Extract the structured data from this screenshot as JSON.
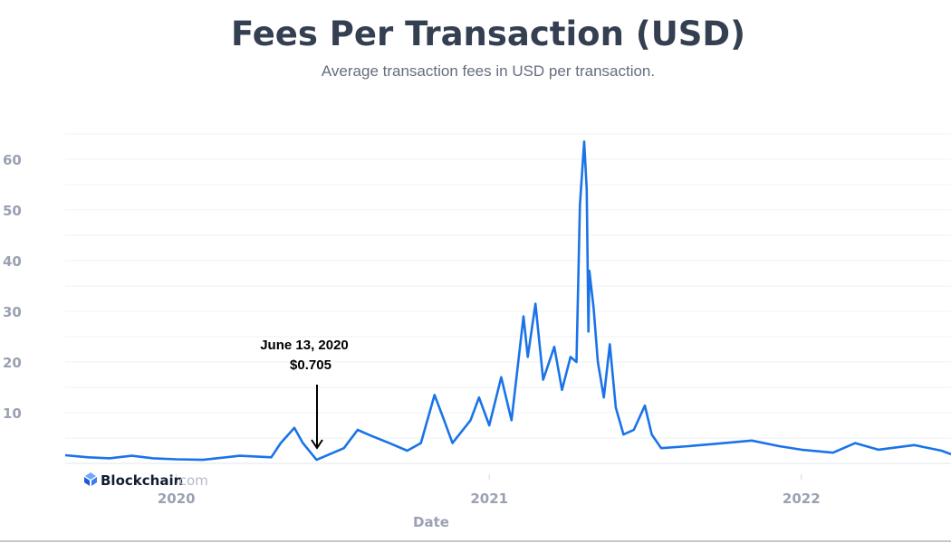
{
  "chart_data": {
    "type": "line",
    "title": "Fees Per Transaction (USD)",
    "subtitle": "Average transaction fees in USD per transaction.",
    "xlabel": "Date",
    "ylabel": "",
    "xlim": [
      "2019-08-24",
      "2022-06-25"
    ],
    "ylim": [
      0,
      66
    ],
    "yticks": [
      10,
      20,
      30,
      40,
      50,
      60
    ],
    "xticks": [
      "2020",
      "2021",
      "2022"
    ],
    "grid": true,
    "line_color": "#1a73e8",
    "series": [
      {
        "x": [
          "2019-08-24",
          "2019-09-20",
          "2019-10-15",
          "2019-11-10",
          "2019-12-05",
          "2020-01-01",
          "2020-02-01",
          "2020-03-15",
          "2020-04-21",
          "2020-05-02",
          "2020-05-18",
          "2020-05-28",
          "2020-06-13",
          "2020-07-15",
          "2020-07-31",
          "2020-08-15",
          "2020-09-06",
          "2020-09-27",
          "2020-10-13",
          "2020-10-29",
          "2020-11-08",
          "2020-11-19",
          "2020-12-10",
          "2020-12-20",
          "2021-01-01",
          "2021-01-15",
          "2021-01-27",
          "2021-02-10",
          "2021-02-15",
          "2021-02-24",
          "2021-03-05",
          "2021-03-18",
          "2021-03-27",
          "2021-04-06",
          "2021-04-13",
          "2021-04-17",
          "2021-04-22",
          "2021-04-25",
          "2021-04-27",
          "2021-04-28",
          "2021-05-03",
          "2021-05-08",
          "2021-05-15",
          "2021-05-22",
          "2021-05-29",
          "2021-06-07",
          "2021-06-19",
          "2021-07-02",
          "2021-07-10",
          "2021-07-21",
          "2021-08-22",
          "2021-10-03",
          "2021-11-04",
          "2021-12-06",
          "2022-01-01",
          "2022-02-07",
          "2022-03-05",
          "2022-04-01",
          "2022-05-13",
          "2022-06-14",
          "2022-06-25"
        ],
        "y": [
          1.6,
          1.2,
          1.0,
          1.5,
          1.0,
          0.8,
          0.7,
          1.5,
          1.2,
          4.0,
          7.0,
          4.0,
          0.705,
          3.0,
          6.6,
          5.5,
          4.0,
          2.5,
          4.0,
          13.5,
          9.0,
          4.0,
          8.5,
          13.0,
          7.5,
          17.0,
          8.5,
          29.0,
          21.0,
          31.5,
          16.5,
          23.0,
          14.5,
          21.0,
          20.0,
          51.0,
          63.5,
          54.0,
          26.0,
          38.0,
          30.7,
          20.0,
          13.0,
          23.5,
          11.0,
          5.7,
          6.6,
          11.4,
          5.7,
          3.0,
          3.4,
          4.0,
          4.5,
          3.4,
          2.7,
          2.1,
          4.0,
          2.7,
          3.6,
          2.5,
          1.8
        ]
      }
    ],
    "annotations": [
      {
        "date": "June 13, 2020",
        "value": "$0.705",
        "x": "2020-06-13",
        "y": 0.705
      }
    ]
  },
  "logo": {
    "brand": "Blockchain",
    "suffix": ".com"
  }
}
